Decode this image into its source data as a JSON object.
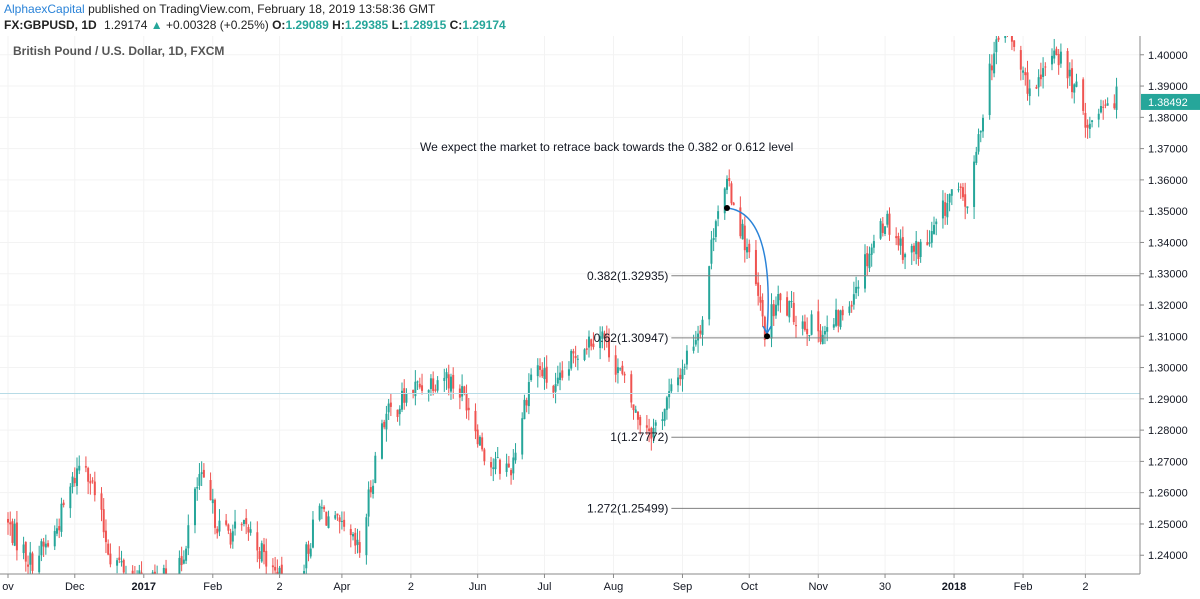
{
  "header": {
    "author": "AlphaexCapital",
    "published_text": "published on TradingView.com, February 18, 2019 13:58:36 GMT",
    "symbol": "FX:GBPUSD, 1D",
    "last": "1.29174",
    "change": "+0.00328 (+0.25%)",
    "open_label": "O:",
    "open": "1.29089",
    "high_label": "H:",
    "high": "1.29385",
    "low_label": "L:",
    "low": "1.28915",
    "close_label": "C:",
    "close": "1.29174"
  },
  "colors": {
    "up": "#26a69a",
    "down": "#ef5350",
    "level_line": "#808080",
    "arc": "#2a83d8",
    "price_tag": "#26a69a"
  },
  "chart_data": {
    "type": "candlestick",
    "title": "British Pound / U.S. Dollar, 1D, FXCM",
    "annotation": "We expect the market to retrace back towards the 0.382 or 0.612 level",
    "ylim": [
      1.234,
      1.406
    ],
    "y_ticks": [
      1.24,
      1.25,
      1.26,
      1.27,
      1.28,
      1.29,
      1.3,
      1.31,
      1.32,
      1.33,
      1.34,
      1.35,
      1.36,
      1.37,
      1.38,
      1.39,
      1.4
    ],
    "y_tick_labels": [
      "1.24000",
      "1.25000",
      "1.26000",
      "1.27000",
      "1.28000",
      "1.29000",
      "1.30000",
      "1.31000",
      "1.32000",
      "1.33000",
      "1.34000",
      "1.35000",
      "1.36000",
      "1.37000",
      "1.38000",
      "1.39000",
      "1.40000"
    ],
    "current_price": 1.38492,
    "current_price_label": "1.38492",
    "x_tick_labels": [
      {
        "label": "ov",
        "day": 0,
        "bold": false
      },
      {
        "label": "Dec",
        "day": 30,
        "bold": false
      },
      {
        "label": "2017",
        "day": 61,
        "bold": true
      },
      {
        "label": "Feb",
        "day": 92,
        "bold": false
      },
      {
        "label": "2",
        "day": 122,
        "bold": false
      },
      {
        "label": "Apr",
        "day": 150,
        "bold": false
      },
      {
        "label": "2",
        "day": 181,
        "bold": false
      },
      {
        "label": "Jun",
        "day": 211,
        "bold": false
      },
      {
        "label": "Jul",
        "day": 241,
        "bold": false
      },
      {
        "label": "Aug",
        "day": 272,
        "bold": false
      },
      {
        "label": "Sep",
        "day": 303,
        "bold": false
      },
      {
        "label": "Oct",
        "day": 333,
        "bold": false
      },
      {
        "label": "Nov",
        "day": 364,
        "bold": false
      },
      {
        "label": "30",
        "day": 394,
        "bold": false
      },
      {
        "label": "2018",
        "day": 425,
        "bold": true
      },
      {
        "label": "Feb",
        "day": 456,
        "bold": false
      },
      {
        "label": "2",
        "day": 484,
        "bold": false
      }
    ],
    "fib_levels": [
      {
        "label": "0.382(1.32935)",
        "value": 1.32935
      },
      {
        "label": "0.62(1.30947)",
        "value": 1.30947
      },
      {
        "label": "1(1.27772)",
        "value": 1.27772
      },
      {
        "label": "1.272(1.25499)",
        "value": 1.25499
      }
    ],
    "fib_start_day": 298,
    "swing_high": {
      "day": 323,
      "value": 1.351
    },
    "swing_low": {
      "day": 341,
      "value": 1.31
    },
    "anchors": [
      {
        "day": -2,
        "value": 1.252
      },
      {
        "day": 10,
        "value": 1.238
      },
      {
        "day": 20,
        "value": 1.245
      },
      {
        "day": 34,
        "value": 1.273
      },
      {
        "day": 46,
        "value": 1.24
      },
      {
        "day": 58,
        "value": 1.232
      },
      {
        "day": 76,
        "value": 1.232
      },
      {
        "day": 86,
        "value": 1.265
      },
      {
        "day": 96,
        "value": 1.247
      },
      {
        "day": 108,
        "value": 1.248
      },
      {
        "day": 118,
        "value": 1.236
      },
      {
        "day": 128,
        "value": 1.226
      },
      {
        "day": 140,
        "value": 1.255
      },
      {
        "day": 158,
        "value": 1.241
      },
      {
        "day": 168,
        "value": 1.283
      },
      {
        "day": 182,
        "value": 1.293
      },
      {
        "day": 196,
        "value": 1.298
      },
      {
        "day": 206,
        "value": 1.29
      },
      {
        "day": 216,
        "value": 1.269
      },
      {
        "day": 226,
        "value": 1.268
      },
      {
        "day": 236,
        "value": 1.302
      },
      {
        "day": 246,
        "value": 1.292
      },
      {
        "day": 256,
        "value": 1.306
      },
      {
        "day": 266,
        "value": 1.312
      },
      {
        "day": 274,
        "value": 1.3
      },
      {
        "day": 282,
        "value": 1.285
      },
      {
        "day": 290,
        "value": 1.28
      },
      {
        "day": 300,
        "value": 1.295
      },
      {
        "day": 312,
        "value": 1.316
      },
      {
        "day": 318,
        "value": 1.35
      },
      {
        "day": 324,
        "value": 1.358
      },
      {
        "day": 332,
        "value": 1.338
      },
      {
        "day": 340,
        "value": 1.312
      },
      {
        "day": 346,
        "value": 1.321
      },
      {
        "day": 356,
        "value": 1.315
      },
      {
        "day": 368,
        "value": 1.311
      },
      {
        "day": 376,
        "value": 1.318
      },
      {
        "day": 386,
        "value": 1.336
      },
      {
        "day": 394,
        "value": 1.348
      },
      {
        "day": 404,
        "value": 1.336
      },
      {
        "day": 414,
        "value": 1.34
      },
      {
        "day": 424,
        "value": 1.356
      },
      {
        "day": 432,
        "value": 1.352
      },
      {
        "day": 440,
        "value": 1.394
      },
      {
        "day": 448,
        "value": 1.41
      },
      {
        "day": 456,
        "value": 1.393
      },
      {
        "day": 462,
        "value": 1.387
      },
      {
        "day": 470,
        "value": 1.403
      },
      {
        "day": 478,
        "value": 1.391
      },
      {
        "day": 486,
        "value": 1.377
      },
      {
        "day": 492,
        "value": 1.386
      }
    ]
  }
}
